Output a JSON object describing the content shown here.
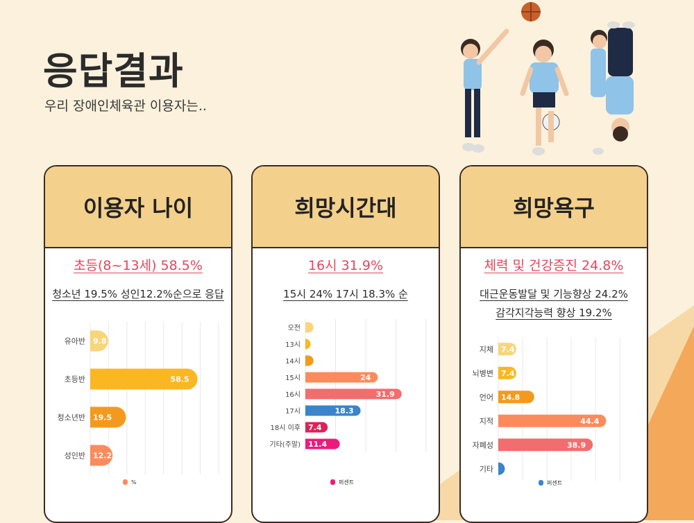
{
  "header": {
    "title": "응답결과",
    "subtitle": "우리 장애인체육관 이용자는.."
  },
  "cards": [
    {
      "title": "이용자 나이",
      "highlight": "초등(8~13세) 58.5%",
      "summary": [
        "청소년 19.5% 성인12.2%순으로 응답"
      ]
    },
    {
      "title": "희망시간대",
      "highlight": "16시 31.9%",
      "summary": [
        "15시 24% 17시 18.3% 순"
      ]
    },
    {
      "title": "희망욕구",
      "highlight": "체력 및 건강증진 24.8%",
      "summary": [
        "대근운동발달 및 기능향상 24.2%",
        "감각지각능력 향상 19.2%"
      ]
    }
  ],
  "chart_data": [
    {
      "type": "bar",
      "orientation": "horizontal",
      "categories": [
        "유아반",
        "초등반",
        "청소년반",
        "성인반"
      ],
      "series": [
        {
          "name": "%",
          "values": [
            9.8,
            58.5,
            19.5,
            12.2
          ]
        }
      ],
      "colors": [
        "#f8d57a",
        "#fbb722",
        "#f39a1e",
        "#fc8b5c"
      ],
      "xlim": [
        0,
        70
      ],
      "grid": true,
      "legend": "bottom"
    },
    {
      "type": "bar",
      "orientation": "horizontal",
      "categories": [
        "오전",
        "13시",
        "14시",
        "15시",
        "16시",
        "17시",
        "18시 이후",
        "기타(주말)"
      ],
      "series": [
        {
          "name": "퍼센트",
          "values": [
            2.7,
            1.0,
            2.7,
            24,
            31.9,
            18.3,
            7.4,
            11.4
          ]
        }
      ],
      "value_labels": [
        "",
        "",
        "",
        "24",
        "31.9",
        "18.3",
        "7.4",
        "11.4"
      ],
      "colors": [
        "#f8d57a",
        "#fbb722",
        "#f39a1e",
        "#fc8b5c",
        "#f26d6d",
        "#3b84c9",
        "#d8245a",
        "#ee1a7b"
      ],
      "xlim": [
        0,
        40
      ],
      "grid": true,
      "legend": "bottom"
    },
    {
      "type": "bar",
      "orientation": "horizontal",
      "categories": [
        "지체",
        "뇌병변",
        "언어",
        "지적",
        "자폐성",
        "기타"
      ],
      "series": [
        {
          "name": "퍼센트",
          "values": [
            7.4,
            7.4,
            14.8,
            44.4,
            38.9,
            2.7
          ]
        }
      ],
      "value_labels": [
        "7.4",
        "7.4",
        "14.8",
        "44.4",
        "38.9",
        ""
      ],
      "colors": [
        "#f8d57a",
        "#fbb722",
        "#f39a1e",
        "#fc8b5c",
        "#f26d6d",
        "#3b84c9"
      ],
      "xlim": [
        0,
        56
      ],
      "grid": true,
      "legend": "bottom"
    }
  ]
}
